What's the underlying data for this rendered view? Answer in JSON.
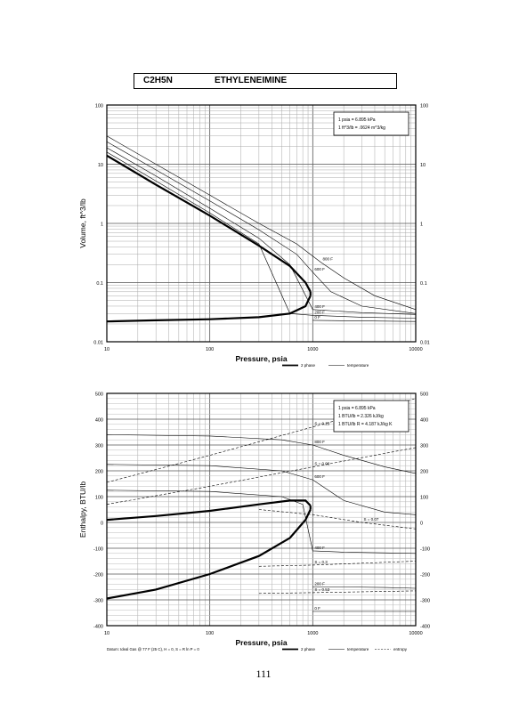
{
  "header": {
    "formula": "C2H5N",
    "name": "ETHYLENEIMINE"
  },
  "page_number": "111",
  "chart_data": [
    {
      "type": "line",
      "ylabel": "Volume, ft^3/lb",
      "xlabel": "Pressure, psia",
      "xscale": "log",
      "yscale": "log",
      "xlim": [
        10,
        10000
      ],
      "ylim": [
        0.01,
        100
      ],
      "x_ticks": [
        "10",
        "100",
        "1000",
        "10000"
      ],
      "y_ticks": [
        "0.01",
        "0.1",
        "1",
        "10",
        "100"
      ],
      "y_ticks_right": [
        "0.01",
        "0.1",
        "1",
        "10",
        "100"
      ],
      "grid": true,
      "conversion_lines": [
        "1 psia = 6.895 kPa",
        "1 ft^3/lb = .0624 m^3/kg"
      ],
      "legend": [
        "2 phase",
        "temperature"
      ],
      "legend_placement": "bottom-right",
      "saturation_liquid": {
        "x": [
          10,
          30,
          100,
          300,
          600,
          850,
          950
        ],
        "y": [
          0.022,
          0.023,
          0.024,
          0.026,
          0.03,
          0.04,
          0.06
        ]
      },
      "saturation_vapor": {
        "x": [
          10,
          30,
          100,
          300,
          600,
          850,
          950
        ],
        "y": [
          14,
          4.5,
          1.35,
          0.42,
          0.19,
          0.1,
          0.07
        ]
      },
      "isotherms": [
        {
          "label": "800 F",
          "x": [
            10,
            30,
            100,
            300,
            700,
            1200,
            2000,
            4000,
            10000
          ],
          "y": [
            30,
            10,
            3,
            1,
            0.45,
            0.22,
            0.12,
            0.06,
            0.035
          ]
        },
        {
          "label": "600 F",
          "x": [
            10,
            30,
            100,
            300,
            700,
            1000,
            1500,
            3000,
            10000
          ],
          "y": [
            24,
            8,
            2.4,
            0.78,
            0.3,
            0.15,
            0.07,
            0.04,
            0.03
          ]
        },
        {
          "label": "400 F",
          "x": [
            10,
            30,
            100,
            300,
            600,
            1000,
            3000,
            10000
          ],
          "y": [
            19,
            6.3,
            1.8,
            0.56,
            0.2,
            0.035,
            0.031,
            0.029
          ]
        },
        {
          "label": "200 F",
          "x": [
            10,
            30,
            100,
            300,
            600,
            1000,
            3000,
            10000
          ],
          "y": [
            16,
            5.2,
            1.5,
            0.45,
            0.03,
            0.028,
            0.026,
            0.025
          ]
        },
        {
          "label": "0 F",
          "x": [
            1000,
            3000,
            10000
          ],
          "y": [
            0.023,
            0.0225,
            0.022
          ]
        }
      ]
    },
    {
      "type": "line",
      "ylabel": "Enthalpy, BTU/lb",
      "xlabel": "Pressure, psia",
      "xscale": "log",
      "xlim": [
        10,
        10000
      ],
      "ylim": [
        -400,
        500
      ],
      "x_ticks": [
        "10",
        "100",
        "1000",
        "10000"
      ],
      "y_ticks": [
        "-400",
        "-300",
        "-200",
        "-100",
        "0",
        "100",
        "200",
        "300",
        "400",
        "500"
      ],
      "y_ticks_right": [
        "-400",
        "-300",
        "-200",
        "-100",
        "0",
        "100",
        "200",
        "300",
        "400",
        "500"
      ],
      "grid": true,
      "conversion_lines": [
        "1 psia = 6.895 kPa",
        "1 BTU/lb = 2.326 kJ/kg",
        "1 BTU/lb R = 4.187 kJ/kg K"
      ],
      "legend": [
        "2 phase",
        "temperature",
        "entropy"
      ],
      "legend_placement": "bottom-right",
      "footnote": "Datum: Ideal Gas @ 77 F (25 C), H = 0, S = R ln P = 0",
      "saturation_liquid": {
        "x": [
          10,
          30,
          100,
          300,
          600,
          850,
          950
        ],
        "y": [
          -295,
          -260,
          -200,
          -130,
          -60,
          10,
          50
        ]
      },
      "saturation_vapor": {
        "x": [
          10,
          30,
          100,
          300,
          600,
          850,
          950
        ],
        "y": [
          10,
          25,
          45,
          70,
          85,
          85,
          65
        ]
      },
      "isotherms": [
        {
          "label": "800 F",
          "x": [
            10,
            100,
            500,
            1000,
            2000,
            5000,
            10000
          ],
          "y": [
            340,
            335,
            320,
            300,
            260,
            215,
            190
          ]
        },
        {
          "label": "600 F",
          "x": [
            10,
            100,
            500,
            1000,
            2000,
            5000,
            10000
          ],
          "y": [
            225,
            220,
            200,
            165,
            85,
            40,
            30
          ]
        },
        {
          "label": "400 F",
          "x": [
            10,
            100,
            500,
            800,
            1000,
            2000,
            5000,
            10000
          ],
          "y": [
            125,
            120,
            100,
            70,
            -110,
            -115,
            -118,
            -120
          ]
        },
        {
          "label": "200 F",
          "x": [
            1000,
            2000,
            5000,
            10000
          ],
          "y": [
            -250,
            -250,
            -252,
            -255
          ]
        },
        {
          "label": "0 F",
          "x": [
            1000,
            2000,
            5000,
            10000
          ],
          "y": [
            -345,
            -345,
            -345,
            -345
          ]
        }
      ],
      "entropy_lines": [
        {
          "label": "S = 0.23",
          "x": [
            10,
            100,
            1000,
            10000
          ],
          "y": [
            155,
            260,
            370,
            480
          ]
        },
        {
          "label": "S = 0.06",
          "x": [
            10,
            100,
            1000,
            10000
          ],
          "y": [
            70,
            140,
            215,
            290
          ]
        },
        {
          "label": "S = 0.07",
          "x": [
            300,
            1000,
            3000,
            10000
          ],
          "y": [
            50,
            30,
            0,
            -25
          ]
        },
        {
          "label": "S = 0.3",
          "x": [
            300,
            1000,
            10000
          ],
          "y": [
            -170,
            -165,
            -150
          ]
        },
        {
          "label": "S = 0.53",
          "x": [
            300,
            1000,
            10000
          ],
          "y": [
            -275,
            -272,
            -265
          ]
        }
      ]
    }
  ]
}
